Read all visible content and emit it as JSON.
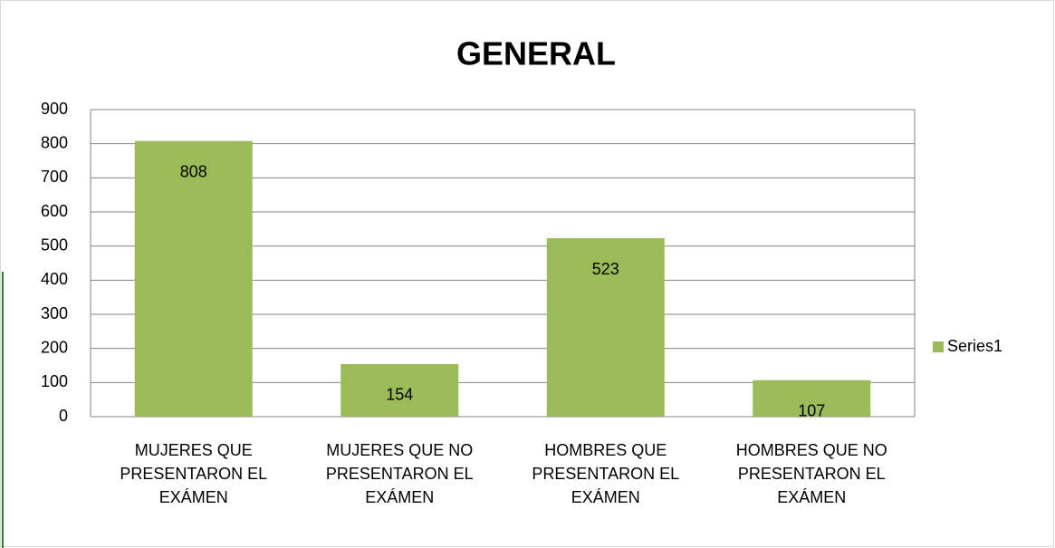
{
  "chart_data": {
    "type": "bar",
    "title": "GENERAL",
    "categories": [
      "MUJERES QUE PRESENTARON EL EXÁMEN",
      "MUJERES QUE NO PRESENTARON EL EXÁMEN",
      "HOMBRES QUE PRESENTARON EL EXÁMEN",
      "HOMBRES QUE NO PRESENTARON EL EXÁMEN"
    ],
    "series": [
      {
        "name": "Series1",
        "color": "#9bbb59",
        "values": [
          808,
          154,
          523,
          107
        ]
      }
    ],
    "ylim": [
      0,
      900
    ],
    "yticks": [
      0,
      100,
      200,
      300,
      400,
      500,
      600,
      700,
      800,
      900
    ],
    "grid": true,
    "legend": "right"
  }
}
